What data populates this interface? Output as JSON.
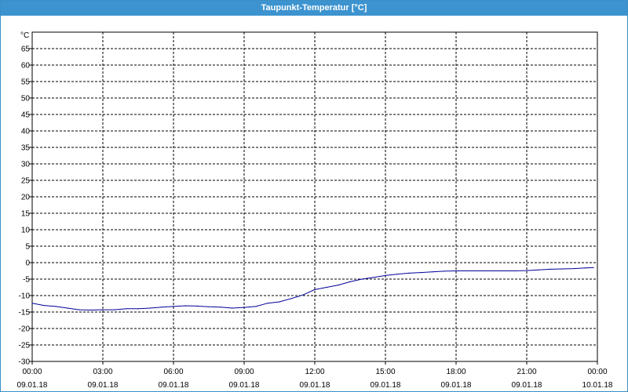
{
  "window": {
    "title": "Taupunkt-Temperatur [°C]"
  },
  "colors": {
    "titlebar": "#3c93cf",
    "series": "#000099",
    "grid": "#000000"
  },
  "chart_data": {
    "type": "line",
    "title": "Taupunkt-Temperatur [°C]",
    "ylabel": "°C",
    "ylim": [
      -30,
      70
    ],
    "yticks": [
      65,
      60,
      55,
      50,
      45,
      40,
      35,
      30,
      25,
      20,
      15,
      10,
      5,
      0,
      -5,
      -10,
      -15,
      -20,
      -25,
      -30
    ],
    "xlim": [
      "2018-01-09T00:00",
      "2018-01-10T00:00"
    ],
    "grid": true,
    "xticks": [
      {
        "time": "00:00",
        "date": "09.01.18"
      },
      {
        "time": "03:00",
        "date": "09.01.18"
      },
      {
        "time": "06:00",
        "date": "09.01.18"
      },
      {
        "time": "09:00",
        "date": "09.01.18"
      },
      {
        "time": "12:00",
        "date": "09.01.18"
      },
      {
        "time": "15:00",
        "date": "09.01.18"
      },
      {
        "time": "18:00",
        "date": "09.01.18"
      },
      {
        "time": "21:00",
        "date": "09.01.18"
      },
      {
        "time": "00:00",
        "date": "10.01.18"
      }
    ],
    "series": [
      {
        "x": [
          "09.01.18 00:00",
          "09.01.18 00:30",
          "09.01.18 01:00",
          "09.01.18 01:30",
          "09.01.18 02:00",
          "09.01.18 02:30",
          "09.01.18 03:00",
          "09.01.18 03:30",
          "09.01.18 04:00",
          "09.01.18 04:30",
          "09.01.18 05:00",
          "09.01.18 05:30",
          "09.01.18 06:00",
          "09.01.18 06:30",
          "09.01.18 07:00",
          "09.01.18 07:30",
          "09.01.18 08:00",
          "09.01.18 08:30",
          "09.01.18 09:00",
          "09.01.18 09:30",
          "09.01.18 10:00",
          "09.01.18 10:30",
          "09.01.18 11:00",
          "09.01.18 11:30",
          "09.01.18 12:00",
          "09.01.18 12:30",
          "09.01.18 13:00",
          "09.01.18 13:30",
          "09.01.18 14:00",
          "09.01.18 14:30",
          "09.01.18 15:00",
          "09.01.18 15:30",
          "09.01.18 16:00",
          "09.01.18 16:30",
          "09.01.18 17:00",
          "09.01.18 17:30",
          "09.01.18 18:00",
          "09.01.18 18:30",
          "09.01.18 19:00",
          "09.01.18 19:30",
          "09.01.18 20:00",
          "09.01.18 20:30",
          "09.01.18 21:00",
          "09.01.18 21:30",
          "09.01.18 22:00",
          "09.01.18 22:30",
          "09.01.18 23:00",
          "09.01.18 23:30",
          "09.01.18 23:50"
        ],
        "values": [
          -12.3,
          -13.0,
          -13.3,
          -13.8,
          -14.3,
          -14.4,
          -14.3,
          -14.3,
          -14.0,
          -14.0,
          -13.8,
          -13.5,
          -13.3,
          -13.1,
          -13.2,
          -13.4,
          -13.5,
          -13.8,
          -13.6,
          -13.3,
          -12.3,
          -11.9,
          -10.9,
          -9.8,
          -8.2,
          -7.5,
          -6.8,
          -5.8,
          -5.0,
          -4.5,
          -3.9,
          -3.5,
          -3.2,
          -3.0,
          -2.8,
          -2.6,
          -2.5,
          -2.5,
          -2.5,
          -2.5,
          -2.5,
          -2.5,
          -2.4,
          -2.2,
          -2.0,
          -1.9,
          -1.8,
          -1.6,
          -1.5
        ]
      }
    ]
  }
}
